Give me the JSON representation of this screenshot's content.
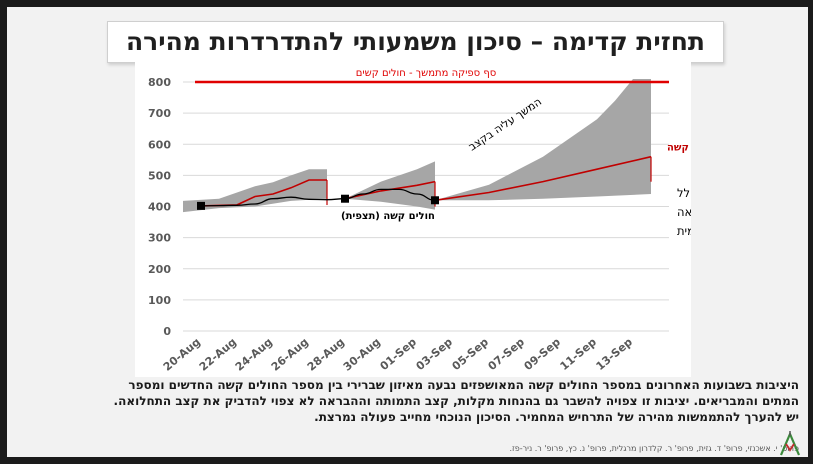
{
  "title": "תחזית קדימה – סיכון משמעותי להתדרדרות מהירה",
  "chart_data": {
    "type": "line",
    "title": "",
    "xlabel": "",
    "ylabel": "",
    "ylim": [
      0,
      800
    ],
    "yticks": [
      0,
      100,
      200,
      300,
      400,
      500,
      600,
      700,
      800
    ],
    "xrange": [
      "2020-08-19",
      "2020-09-15"
    ],
    "xticks": [
      "20-Aug",
      "22-Aug",
      "24-Aug",
      "26-Aug",
      "28-Aug",
      "30-Aug",
      "01-Sep",
      "03-Sep",
      "05-Sep",
      "07-Sep",
      "09-Sep",
      "11-Sep",
      "13-Sep"
    ],
    "xtick_dates": [
      "2020-08-20",
      "2020-08-22",
      "2020-08-24",
      "2020-08-26",
      "2020-08-28",
      "2020-08-30",
      "2020-09-01",
      "2020-09-03",
      "2020-09-05",
      "2020-09-07",
      "2020-09-09",
      "2020-09-11",
      "2020-09-13"
    ],
    "grid": true,
    "capacity": {
      "value": 800,
      "label": "סף ספיקה מתמשך - חולים קשים",
      "color": "#e00000"
    },
    "observed": {
      "name": "חולים קשה (תצפית)",
      "color": "#000000",
      "points": [
        [
          "2020-08-20",
          402
        ],
        [
          "2020-08-21",
          403
        ],
        [
          "2020-08-22",
          404
        ],
        [
          "2020-08-23",
          408
        ],
        [
          "2020-08-24",
          425
        ],
        [
          "2020-08-25",
          430
        ],
        [
          "2020-08-26",
          423
        ],
        [
          "2020-08-27",
          422
        ],
        [
          "2020-08-28",
          425
        ],
        [
          "2020-08-29",
          440
        ],
        [
          "2020-08-30",
          455
        ],
        [
          "2020-08-31",
          455
        ],
        [
          "2020-09-01",
          440
        ],
        [
          "2020-09-02",
          420
        ]
      ]
    },
    "forecast_segments": [
      {
        "color": "#c00000",
        "points": [
          [
            "2020-08-20",
            402
          ],
          [
            "2020-08-22",
            405
          ],
          [
            "2020-08-23",
            432
          ],
          [
            "2020-08-24",
            440
          ],
          [
            "2020-08-25",
            460
          ],
          [
            "2020-08-26",
            485
          ],
          [
            "2020-08-27",
            485
          ]
        ],
        "band_upper": [
          [
            "2020-08-19",
            418
          ],
          [
            "2020-08-21",
            425
          ],
          [
            "2020-08-23",
            465
          ],
          [
            "2020-08-24",
            478
          ],
          [
            "2020-08-25",
            500
          ],
          [
            "2020-08-26",
            520
          ],
          [
            "2020-08-27",
            520
          ]
        ],
        "band_lower": [
          [
            "2020-08-19",
            382
          ],
          [
            "2020-08-21",
            395
          ],
          [
            "2020-08-23",
            400
          ],
          [
            "2020-08-25",
            418
          ],
          [
            "2020-08-27",
            425
          ]
        ]
      },
      {
        "color": "#c00000",
        "points": [
          [
            "2020-08-28",
            425
          ],
          [
            "2020-08-30",
            450
          ],
          [
            "2020-09-01",
            468
          ],
          [
            "2020-09-02",
            480
          ]
        ],
        "band_upper": [
          [
            "2020-08-28",
            425
          ],
          [
            "2020-08-30",
            480
          ],
          [
            "2020-09-01",
            520
          ],
          [
            "2020-09-02",
            545
          ]
        ],
        "band_lower": [
          [
            "2020-08-28",
            425
          ],
          [
            "2020-08-30",
            415
          ],
          [
            "2020-09-01",
            400
          ],
          [
            "2020-09-02",
            390
          ]
        ]
      },
      {
        "color": "#c00000",
        "points": [
          [
            "2020-09-02",
            420
          ],
          [
            "2020-09-05",
            445
          ],
          [
            "2020-09-08",
            480
          ],
          [
            "2020-09-11",
            520
          ],
          [
            "2020-09-14",
            560
          ]
        ],
        "band_upper": [
          [
            "2020-09-02",
            420
          ],
          [
            "2020-09-05",
            470
          ],
          [
            "2020-09-08",
            560
          ],
          [
            "2020-09-11",
            680
          ],
          [
            "2020-09-12",
            740
          ],
          [
            "2020-09-13",
            815
          ],
          [
            "2020-09-14",
            815
          ]
        ],
        "band_lower": [
          [
            "2020-09-02",
            420
          ],
          [
            "2020-09-05",
            420
          ],
          [
            "2020-09-08",
            425
          ],
          [
            "2020-09-11",
            432
          ],
          [
            "2020-09-14",
            440
          ]
        ]
      }
    ],
    "markers": [
      [
        "2020-08-20",
        402
      ],
      [
        "2020-08-28",
        425
      ],
      [
        "2020-09-02",
        420
      ]
    ],
    "band_color": "#a6a6a6",
    "annotations": {
      "observed_label": "חולים קשה  (תצפית)",
      "forecast_label": "תחזית חולים קשה",
      "trend_label": "המשך עליה בקצב",
      "note_lines": [
        "ירידה במספר הכולל",
        "כתוצאה מעליה בקצב תמותה והבראה",
        "ללא שינוי בתחלואה יומית"
      ]
    }
  },
  "bottom_text": {
    "line1": "היציבות בשבועות האחרונים במספר החולים קשה המאושפזים נבעה מאיזון שברירי בין  מספר החולים קשה החדשים ומספר",
    "line2": "המתים והמבריאים.  יציבות זו צפויה להשבר גם בהנחות מקלות, קצב התמותה וההבראה לא צפוי להדביק את קצב התחלואה.",
    "line3": "יש להערך להתממשות מהירה של התרחיש המחמיר.  הסיכון הנוכחי מחייב פעולה נמרצת."
  },
  "credits": "פרופ' י. אשכנזי, פרופ' ד. גזית, פרופ' ר. קלדרון מרגלית, פרופ' נ. כץ, פרופ' ר. ניר-פז."
}
